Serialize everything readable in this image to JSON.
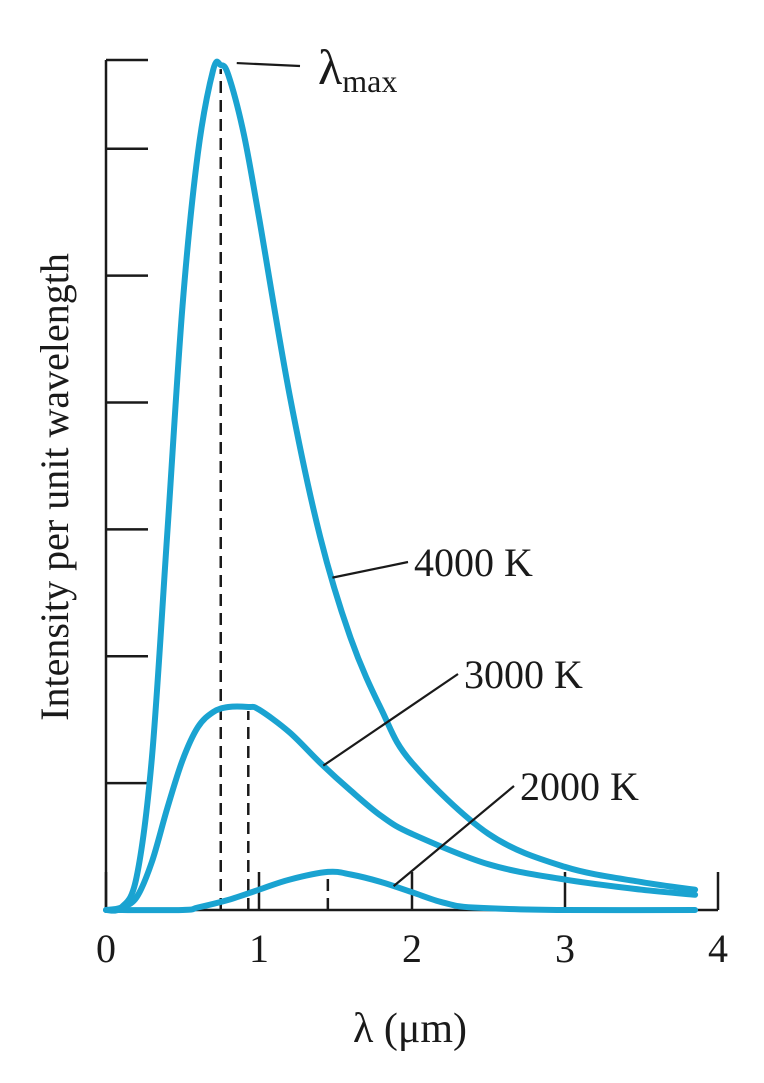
{
  "chart_data": {
    "type": "line",
    "title": "",
    "xlabel": "λ (μm)",
    "ylabel": "Intensity per unit wavelength",
    "xlim": [
      0,
      4
    ],
    "ylim": [
      0,
      3.35
    ],
    "x_ticks": [
      "0",
      "1",
      "2",
      "3",
      "4"
    ],
    "y_ticks_labeled": false,
    "grid": false,
    "annotation": {
      "symbol": "λ",
      "subscript": "max"
    },
    "series": [
      {
        "name": "4000 K",
        "color": "#1aa3d1",
        "peak_x": 0.75,
        "x": [
          0,
          0.1,
          0.2,
          0.3,
          0.4,
          0.5,
          0.6,
          0.7,
          0.75,
          0.8,
          0.9,
          1.0,
          1.2,
          1.4,
          1.6,
          1.8,
          2.0,
          2.5,
          3.0,
          3.5,
          3.85
        ],
        "values": [
          0,
          0.01,
          0.13,
          0.6,
          1.48,
          2.38,
          2.98,
          3.31,
          3.33,
          3.29,
          3.06,
          2.73,
          2.03,
          1.47,
          1.07,
          0.79,
          0.58,
          0.3,
          0.17,
          0.11,
          0.08
        ]
      },
      {
        "name": "3000 K",
        "color": "#1aa3d1",
        "peak_x": 0.93,
        "x": [
          0,
          0.1,
          0.2,
          0.3,
          0.4,
          0.5,
          0.6,
          0.7,
          0.8,
          0.93,
          1.0,
          1.2,
          1.4,
          1.6,
          1.8,
          2.0,
          2.5,
          3.0,
          3.5,
          3.85
        ],
        "values": [
          0,
          0.01,
          0.05,
          0.19,
          0.4,
          0.59,
          0.72,
          0.78,
          0.8,
          0.8,
          0.79,
          0.7,
          0.58,
          0.47,
          0.37,
          0.3,
          0.18,
          0.12,
          0.08,
          0.06
        ]
      },
      {
        "name": "2000 K",
        "color": "#1aa3d1",
        "peak_x": 1.45,
        "x": [
          0,
          0.5,
          0.6,
          0.8,
          1.0,
          1.2,
          1.45,
          1.6,
          1.8,
          2.0,
          2.2,
          2.4,
          3.0,
          3.85
        ],
        "values": [
          0,
          0,
          0.01,
          0.04,
          0.08,
          0.12,
          0.15,
          0.14,
          0.11,
          0.07,
          0.03,
          0.01,
          0,
          0
        ]
      }
    ]
  }
}
